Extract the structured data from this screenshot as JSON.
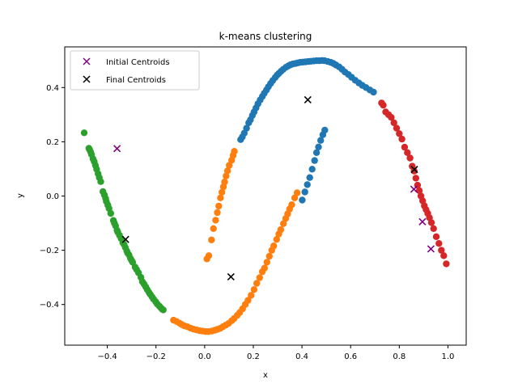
{
  "chart_data": {
    "type": "scatter",
    "title": "k-means clustering",
    "xlabel": "x",
    "ylabel": "y",
    "xlim": [
      -0.575,
      1.075
    ],
    "ylim": [
      -0.55,
      0.55
    ],
    "xticks": [
      -0.4,
      -0.2,
      0.0,
      0.2,
      0.4,
      0.6,
      0.8,
      1.0
    ],
    "xtick_labels": [
      "−0.4",
      "−0.2",
      "0.0",
      "0.2",
      "0.4",
      "0.6",
      "0.8",
      "1.0"
    ],
    "yticks": [
      -0.4,
      -0.2,
      0.0,
      0.2,
      0.4
    ],
    "ytick_labels": [
      "−0.4",
      "−0.2",
      "0.0",
      "0.2",
      "0.4"
    ],
    "grid": false,
    "legend": {
      "placement": "top-left",
      "entries": [
        {
          "label": "Initial Centroids",
          "color": "#800080",
          "marker": "x"
        },
        {
          "label": "Final Centroids",
          "color": "#000000",
          "marker": "x"
        }
      ]
    },
    "series": [
      {
        "color": "#2ca02c",
        "x": [
          -0.495,
          -0.476,
          -0.473,
          -0.469,
          -0.465,
          -0.459,
          -0.454,
          -0.449,
          -0.444,
          -0.438,
          -0.433,
          -0.427,
          -0.418,
          -0.412,
          -0.407,
          -0.404,
          -0.398,
          -0.393,
          -0.386,
          -0.375,
          -0.371,
          -0.366,
          -0.36,
          -0.357,
          -0.35,
          -0.343,
          -0.336,
          -0.331,
          -0.326,
          -0.32,
          -0.317,
          -0.311,
          -0.305,
          -0.3,
          -0.296,
          -0.286,
          -0.28,
          -0.272,
          -0.262,
          -0.256,
          -0.249,
          -0.242,
          -0.236,
          -0.229,
          -0.223,
          -0.216,
          -0.21,
          -0.201,
          -0.195,
          -0.186,
          -0.18,
          -0.175,
          -0.17
        ],
        "y": [
          0.233,
          0.176,
          0.171,
          0.163,
          0.153,
          0.137,
          0.127,
          0.113,
          0.099,
          0.082,
          0.068,
          0.053,
          0.016,
          0.004,
          -0.009,
          -0.02,
          -0.033,
          -0.046,
          -0.064,
          -0.09,
          -0.1,
          -0.11,
          -0.126,
          -0.133,
          -0.145,
          -0.157,
          -0.172,
          -0.179,
          -0.19,
          -0.203,
          -0.21,
          -0.217,
          -0.23,
          -0.238,
          -0.244,
          -0.262,
          -0.271,
          -0.283,
          -0.3,
          -0.316,
          -0.325,
          -0.335,
          -0.345,
          -0.355,
          -0.363,
          -0.372,
          -0.38,
          -0.39,
          -0.398,
          -0.406,
          -0.412,
          -0.417,
          -0.42
        ]
      },
      {
        "color": "#ff7f0e",
        "x": [
          -0.128,
          -0.115,
          -0.103,
          -0.094,
          -0.083,
          -0.071,
          -0.058,
          -0.046,
          -0.033,
          -0.02,
          -0.008,
          0.004,
          0.016,
          0.029,
          0.041,
          0.052,
          0.064,
          0.075,
          0.087,
          0.098,
          0.111,
          0.121,
          0.134,
          0.144,
          0.156,
          0.167,
          0.178,
          0.191,
          0.203,
          0.214,
          0.226,
          0.237,
          0.246,
          0.256,
          0.266,
          0.276,
          0.284,
          0.296,
          0.305,
          0.313,
          0.324,
          0.333,
          0.341,
          0.349,
          0.358,
          0.37,
          0.38,
          0.009,
          0.017,
          0.028,
          0.036,
          0.045,
          0.052,
          0.058,
          0.065,
          0.071,
          0.077,
          0.082,
          0.088,
          0.094,
          0.101,
          0.111,
          0.117,
          0.122
        ],
        "y": [
          -0.458,
          -0.463,
          -0.469,
          -0.474,
          -0.479,
          -0.482,
          -0.487,
          -0.491,
          -0.494,
          -0.497,
          -0.498,
          -0.5,
          -0.5,
          -0.498,
          -0.495,
          -0.492,
          -0.488,
          -0.482,
          -0.476,
          -0.47,
          -0.46,
          -0.452,
          -0.44,
          -0.43,
          -0.416,
          -0.4,
          -0.385,
          -0.366,
          -0.345,
          -0.322,
          -0.301,
          -0.279,
          -0.266,
          -0.244,
          -0.222,
          -0.2,
          -0.184,
          -0.16,
          -0.14,
          -0.124,
          -0.102,
          -0.083,
          -0.066,
          -0.048,
          -0.032,
          -0.007,
          0.012,
          -0.232,
          -0.22,
          -0.162,
          -0.12,
          -0.089,
          -0.061,
          -0.037,
          -0.007,
          0.014,
          0.034,
          0.052,
          0.074,
          0.093,
          0.113,
          0.132,
          0.15,
          0.165
        ]
      },
      {
        "color": "#1f77b4",
        "x": [
          0.148,
          0.155,
          0.163,
          0.172,
          0.181,
          0.188,
          0.196,
          0.203,
          0.211,
          0.219,
          0.228,
          0.237,
          0.245,
          0.254,
          0.262,
          0.271,
          0.28,
          0.29,
          0.298,
          0.305,
          0.314,
          0.323,
          0.334,
          0.344,
          0.353,
          0.363,
          0.374,
          0.383,
          0.393,
          0.404,
          0.415,
          0.426,
          0.437,
          0.449,
          0.46,
          0.472,
          0.483,
          0.493,
          0.506,
          0.518,
          0.529,
          0.54,
          0.553,
          0.565,
          0.577,
          0.591,
          0.604,
          0.619,
          0.634,
          0.648,
          0.663,
          0.679,
          0.694,
          0.401,
          0.412,
          0.422,
          0.432,
          0.442,
          0.452,
          0.46,
          0.468,
          0.477,
          0.486,
          0.494
        ],
        "y": [
          0.208,
          0.218,
          0.232,
          0.25,
          0.27,
          0.281,
          0.297,
          0.31,
          0.325,
          0.34,
          0.354,
          0.367,
          0.379,
          0.391,
          0.403,
          0.415,
          0.426,
          0.437,
          0.446,
          0.452,
          0.46,
          0.467,
          0.475,
          0.48,
          0.484,
          0.487,
          0.489,
          0.491,
          0.493,
          0.494,
          0.495,
          0.496,
          0.497,
          0.498,
          0.499,
          0.499,
          0.5,
          0.499,
          0.496,
          0.493,
          0.489,
          0.483,
          0.476,
          0.467,
          0.457,
          0.448,
          0.438,
          0.427,
          0.417,
          0.408,
          0.4,
          0.391,
          0.383,
          -0.015,
          0.015,
          0.042,
          0.068,
          0.099,
          0.131,
          0.16,
          0.181,
          0.205,
          0.226,
          0.243
        ]
      },
      {
        "color": "#d62728",
        "x": [
          0.727,
          0.734,
          0.744,
          0.756,
          0.767,
          0.778,
          0.789,
          0.8,
          0.811,
          0.822,
          0.833,
          0.844,
          0.853,
          0.861,
          0.868,
          0.875,
          0.882,
          0.889,
          0.896,
          0.903,
          0.91,
          0.917,
          0.924,
          0.932,
          0.941,
          0.952,
          0.963,
          0.973,
          0.983,
          0.993
        ],
        "y": [
          0.343,
          0.335,
          0.31,
          0.3,
          0.29,
          0.27,
          0.25,
          0.23,
          0.21,
          0.18,
          0.16,
          0.14,
          0.11,
          0.092,
          0.066,
          0.04,
          0.02,
          0.0,
          -0.018,
          -0.036,
          -0.05,
          -0.064,
          -0.08,
          -0.098,
          -0.12,
          -0.15,
          -0.175,
          -0.2,
          -0.22,
          -0.25
        ]
      }
    ],
    "initial_centroids": {
      "x": [
        -0.36,
        0.86,
        0.895,
        0.93
      ],
      "y": [
        0.175,
        0.025,
        -0.095,
        -0.195
      ]
    },
    "final_centroids": {
      "x": [
        -0.325,
        0.108,
        0.424,
        0.862
      ],
      "y": [
        -0.16,
        -0.298,
        0.355,
        0.098
      ]
    }
  }
}
